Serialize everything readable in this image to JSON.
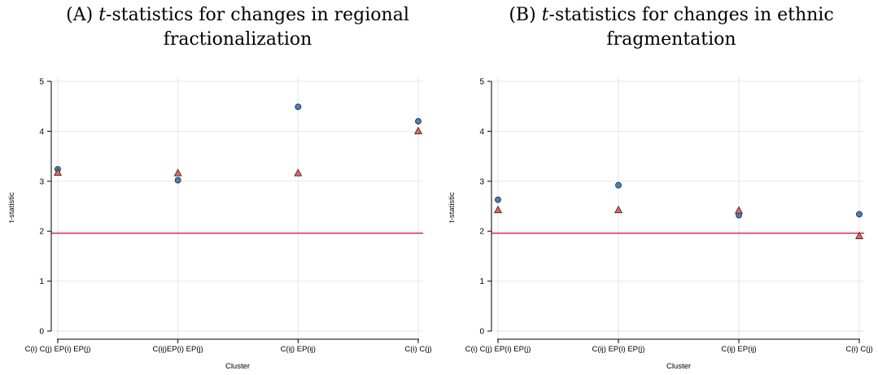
{
  "panels": [
    {
      "letter": "(A)",
      "title_main": "-statistics for changes in regional",
      "title_var": "t",
      "title_line2": "fractionalization"
    },
    {
      "letter": "(B)",
      "title_main": "-statistics for changes in ethnic",
      "title_var": "t",
      "title_line2": "fragmentation"
    }
  ],
  "chart_data": [
    {
      "type": "scatter",
      "xlabel": "Cluster",
      "ylabel": "t-statistic",
      "ylim": [
        0,
        5
      ],
      "yticks": [
        0,
        1,
        2,
        3,
        4,
        5
      ],
      "categories": [
        "C(i) C(j) EP(i) EP(j)",
        "C(ij)EP(i) EP(j)",
        "C(ij) EP(ij)",
        "C(i) C(j)"
      ],
      "reference_line": 1.96,
      "grid": true,
      "series": [
        {
          "marker": "circle",
          "color": "#4a7fb5",
          "values": [
            3.24,
            3.02,
            4.49,
            4.2
          ]
        },
        {
          "marker": "triangle",
          "color": "#d96a6a",
          "values": [
            3.17,
            3.16,
            3.16,
            4.0
          ]
        }
      ]
    },
    {
      "type": "scatter",
      "xlabel": "Cluster",
      "ylabel": "t-statistic",
      "ylim": [
        0,
        5
      ],
      "yticks": [
        0,
        1,
        2,
        3,
        4,
        5
      ],
      "categories": [
        "C(i) C(j) EP(i) EP(j)",
        "C(ij) EP(i) EP(j)",
        "C(ij) EP(ij)",
        "C(i) C(j)"
      ],
      "reference_line": 1.96,
      "grid": true,
      "series": [
        {
          "marker": "circle",
          "color": "#4a7fb5",
          "values": [
            2.63,
            2.92,
            2.32,
            2.34
          ]
        },
        {
          "marker": "triangle",
          "color": "#d96a6a",
          "values": [
            2.42,
            2.42,
            2.41,
            1.9
          ]
        }
      ]
    }
  ],
  "colors": {
    "reference_line": "#c8102e",
    "grid": "#e6e6e6",
    "axis": "#000000"
  }
}
